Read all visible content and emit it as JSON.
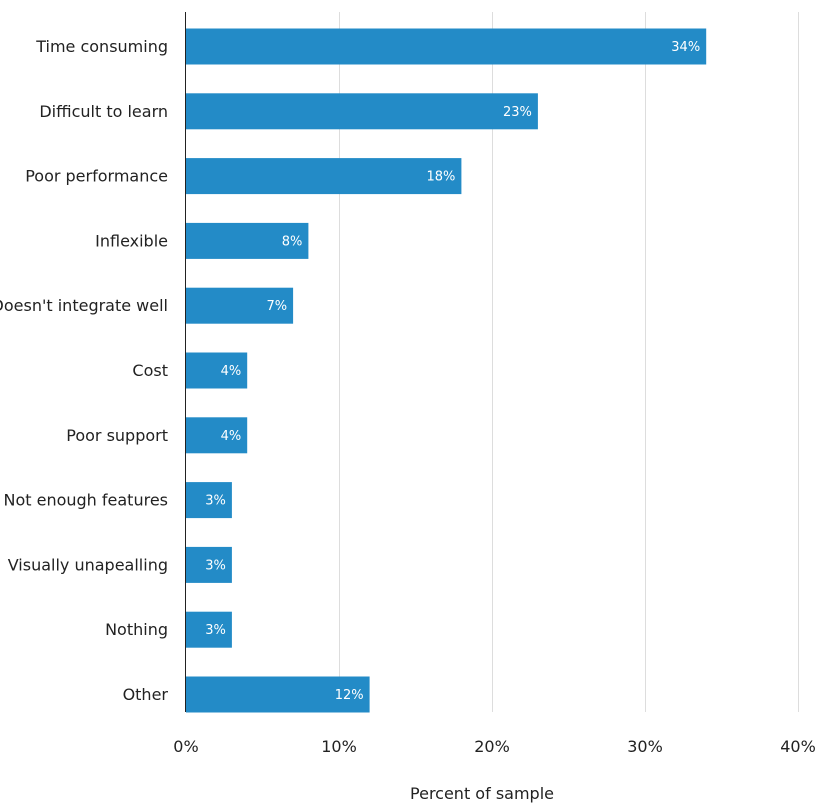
{
  "chart_data": {
    "type": "bar",
    "orientation": "horizontal",
    "categories": [
      "Time consuming",
      "Difficult to learn",
      "Poor performance",
      "Inflexible",
      "Doesn't integrate well",
      "Cost",
      "Poor support",
      "Not enough features",
      "Visually unapealling",
      "Nothing",
      "Other"
    ],
    "values": [
      34,
      23,
      18,
      8,
      7,
      4,
      4,
      3,
      3,
      3,
      12
    ],
    "data_labels": [
      "34%",
      "23%",
      "18%",
      "8%",
      "7%",
      "4%",
      "4%",
      "3%",
      "3%",
      "3%",
      "12%"
    ],
    "xlabel": "Percent of sample",
    "ylabel": "",
    "xlim": [
      0,
      40
    ],
    "x_ticks": [
      0,
      10,
      20,
      30,
      40
    ],
    "x_tick_labels": [
      "0%",
      "10%",
      "20%",
      "30%",
      "40%"
    ],
    "grid": "vertical",
    "legend": "none",
    "colors": {
      "bar": "#238bc7",
      "grid": "#dddddd",
      "axis": "#222222",
      "bar_label": "#ffffff"
    }
  }
}
